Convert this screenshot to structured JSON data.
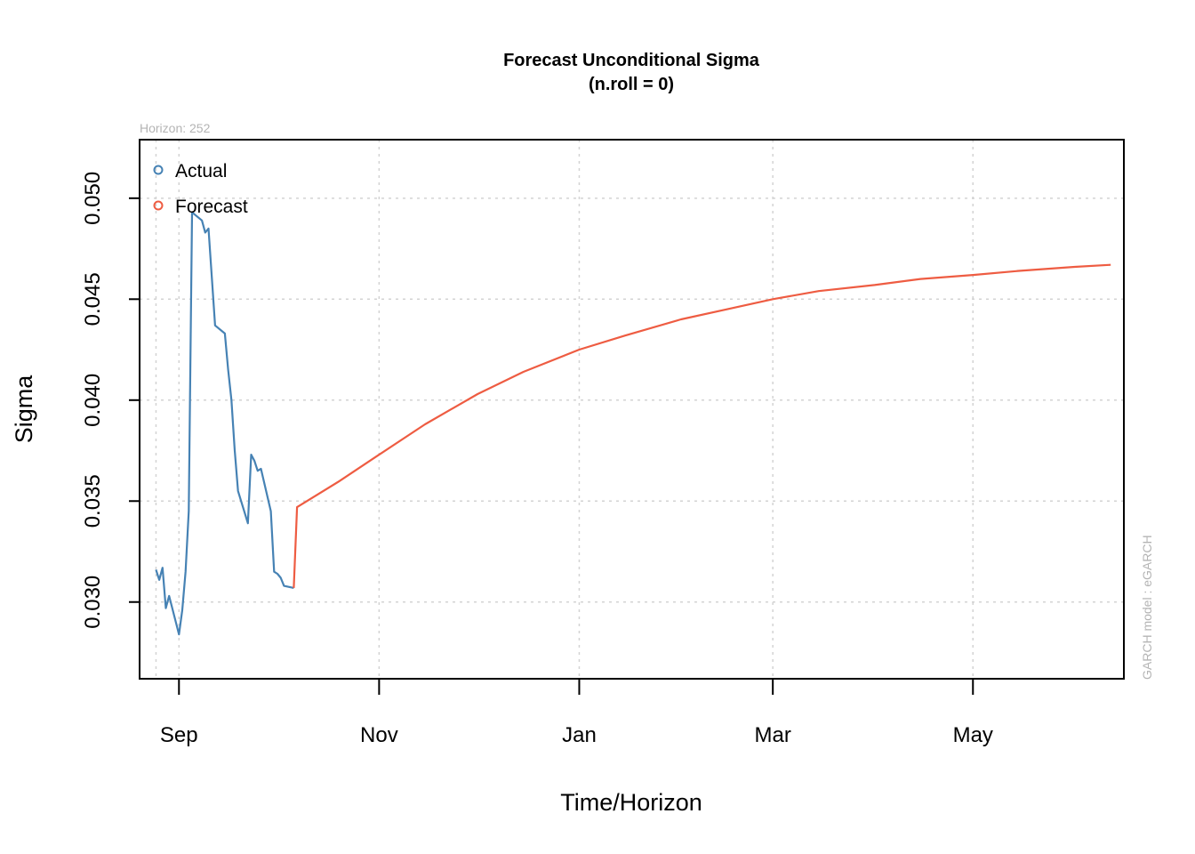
{
  "chart_data": {
    "type": "line",
    "title": "Forecast Unconditional Sigma",
    "subtitle": "(n.roll = 0)",
    "xlabel": "Time/Horizon",
    "ylabel": "Sigma",
    "horizon_note": "Horizon: 252",
    "model_note": "GARCH model :  eGARCH",
    "x_ticks": [
      {
        "label": "Sep",
        "date": "2008-09-01"
      },
      {
        "label": "Nov",
        "date": "2008-11-01"
      },
      {
        "label": "Jan",
        "date": "2009-01-01"
      },
      {
        "label": "Mar",
        "date": "2009-03-01"
      },
      {
        "label": "May",
        "date": "2009-05-01"
      }
    ],
    "y_ticks": [
      "0.030",
      "0.035",
      "0.040",
      "0.045",
      "0.050"
    ],
    "xlim": [
      "2008-08-20",
      "2009-06-16"
    ],
    "ylim": [
      0.0262,
      0.0529
    ],
    "grid": true,
    "legend_position": "top-left",
    "colors": {
      "actual": "#4682b4",
      "forecast": "#ee5c42",
      "grid": "#d3d3d3",
      "note": "#b4b4b4"
    },
    "series": [
      {
        "name": "Actual",
        "color": "#4682b4",
        "x": [
          "2008-08-25",
          "2008-08-26",
          "2008-08-27",
          "2008-08-28",
          "2008-08-29",
          "2008-09-01",
          "2008-09-02",
          "2008-09-03",
          "2008-09-04",
          "2008-09-05",
          "2008-09-08",
          "2008-09-09",
          "2008-09-10",
          "2008-09-11",
          "2008-09-12",
          "2008-09-15",
          "2008-09-16",
          "2008-09-17",
          "2008-09-18",
          "2008-09-19",
          "2008-09-22",
          "2008-09-23",
          "2008-09-24",
          "2008-09-25",
          "2008-09-26",
          "2008-09-29",
          "2008-09-30",
          "2008-10-01",
          "2008-10-02",
          "2008-10-03",
          "2008-10-06"
        ],
        "values": [
          0.0316,
          0.0311,
          0.0317,
          0.0297,
          0.0303,
          0.0284,
          0.0296,
          0.0315,
          0.0345,
          0.0493,
          0.0489,
          0.0483,
          0.0485,
          0.0461,
          0.0437,
          0.0433,
          0.0415,
          0.04,
          0.0375,
          0.0355,
          0.0339,
          0.0373,
          0.037,
          0.0365,
          0.0366,
          0.0345,
          0.0315,
          0.0314,
          0.0312,
          0.0308,
          0.0307
        ]
      },
      {
        "name": "Forecast",
        "color": "#ee5c42",
        "x": [
          "2008-10-06",
          "2008-10-07",
          "2008-10-08",
          "2008-10-20",
          "2008-11-01",
          "2008-11-15",
          "2008-12-01",
          "2008-12-15",
          "2009-01-01",
          "2009-01-15",
          "2009-02-01",
          "2009-02-15",
          "2009-03-01",
          "2009-03-15",
          "2009-04-01",
          "2009-04-15",
          "2009-05-01",
          "2009-05-15",
          "2009-06-01",
          "2009-06-12"
        ],
        "values": [
          0.0307,
          0.0347,
          0.0348,
          0.036,
          0.0373,
          0.0388,
          0.0403,
          0.0414,
          0.0425,
          0.0432,
          0.044,
          0.0445,
          0.045,
          0.0454,
          0.0457,
          0.046,
          0.0462,
          0.0464,
          0.0466,
          0.0467
        ]
      }
    ]
  }
}
